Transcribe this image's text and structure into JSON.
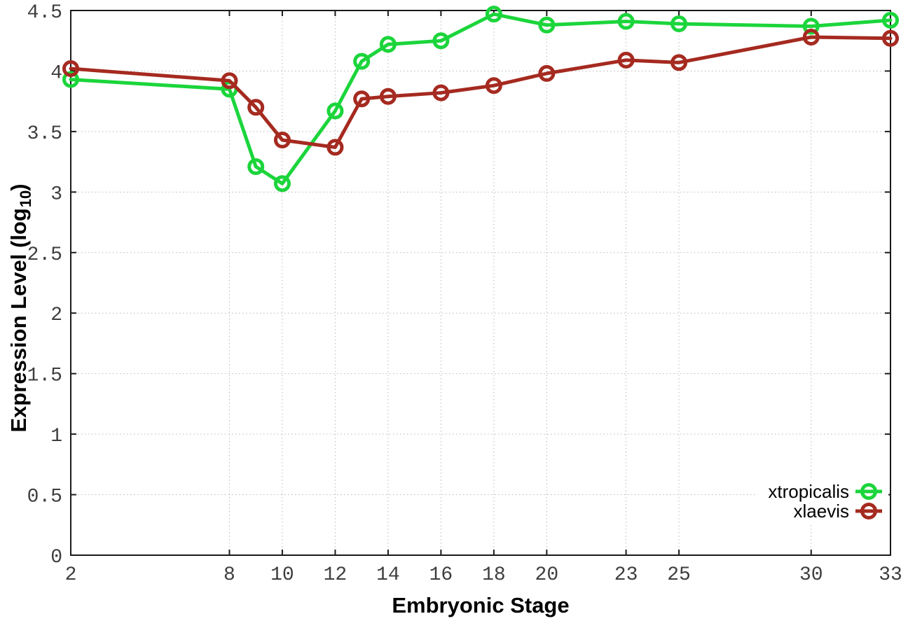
{
  "chart_data": {
    "type": "line",
    "title": "",
    "xlabel": "Embryonic Stage",
    "ylabel": "Expression Level (log10)",
    "ylabel_parts": {
      "prefix": "Expression Level (log",
      "sub": "10",
      "suffix": ")"
    },
    "x": [
      2,
      8,
      9,
      10,
      12,
      13,
      14,
      16,
      18,
      20,
      23,
      25,
      30,
      33
    ],
    "xlim": [
      2,
      33
    ],
    "ylim": [
      0,
      4.5
    ],
    "xtick_labels": [
      "2",
      "8",
      "10",
      "12",
      "14",
      "16",
      "18",
      "20",
      "23",
      "25",
      "30",
      "33"
    ],
    "xtick_values": [
      2,
      8,
      10,
      12,
      14,
      16,
      18,
      20,
      23,
      25,
      30,
      33
    ],
    "ytick_labels": [
      "0",
      "0.5",
      "1",
      "1.5",
      "2",
      "2.5",
      "3",
      "3.5",
      "4",
      "4.5"
    ],
    "ytick_values": [
      0,
      0.5,
      1,
      1.5,
      2,
      2.5,
      3,
      3.5,
      4,
      4.5
    ],
    "grid": true,
    "grid_style": "dotted",
    "legend_position": "bottom-right-inside",
    "series": [
      {
        "name": "xtropicalis",
        "color": "#1bd53b",
        "marker": "open-circle",
        "values": [
          3.93,
          3.85,
          3.21,
          3.07,
          3.67,
          4.08,
          4.22,
          4.25,
          4.47,
          4.38,
          4.41,
          4.39,
          4.37,
          4.42
        ]
      },
      {
        "name": "xlaevis",
        "color": "#a52a20",
        "marker": "open-circle",
        "values": [
          4.02,
          3.92,
          3.7,
          3.43,
          3.37,
          3.77,
          3.79,
          3.82,
          3.88,
          3.98,
          4.09,
          4.07,
          4.28,
          4.27
        ]
      }
    ],
    "style": {
      "border_color": "#1a1a1a",
      "grid_color": "#b9b9b9",
      "tick_label_color": "#3e3e3e",
      "background": "#ffffff"
    }
  }
}
